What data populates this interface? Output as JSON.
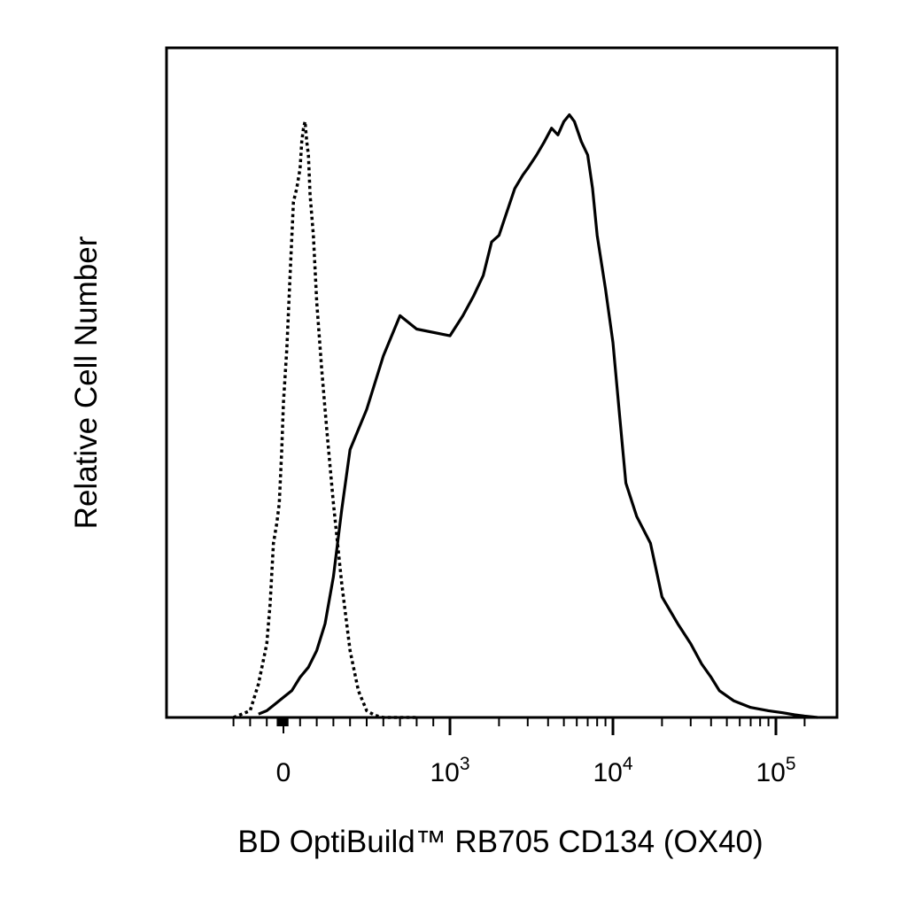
{
  "chart_data": {
    "type": "line",
    "title": "",
    "xlabel": "BD OptiBuild™ RB705 CD134 (OX40)",
    "ylabel": "Relative Cell Number",
    "x_scale": "biexponential",
    "xlim": [
      -300,
      180000
    ],
    "ylim": [
      0,
      100
    ],
    "grid": false,
    "legend": "none",
    "x_tick_labels": [
      {
        "value": 0,
        "base": "0",
        "exp": ""
      },
      {
        "value": 1000,
        "base": "10",
        "exp": "3"
      },
      {
        "value": 10000,
        "base": "10",
        "exp": "4"
      },
      {
        "value": 100000,
        "base": "10",
        "exp": "5"
      }
    ],
    "series": [
      {
        "style": "dotted",
        "color": "#000000",
        "x": [
          -300,
          -200,
          -150,
          -100,
          -80,
          -60,
          -40,
          -25,
          -10,
          0,
          20,
          40,
          60,
          80,
          100,
          110,
          120,
          130,
          140,
          150,
          160,
          180,
          200,
          230,
          260,
          300,
          350,
          400,
          450,
          500,
          550,
          600,
          650,
          700,
          750,
          800
        ],
        "y": [
          0,
          1,
          5,
          11,
          17,
          26,
          29,
          32,
          40,
          47,
          55,
          66,
          77,
          79,
          82,
          86,
          88,
          89,
          86,
          84,
          78,
          72,
          62,
          52,
          43,
          32,
          20,
          10,
          4,
          1,
          0.3,
          0,
          0,
          0,
          0,
          0
        ]
      },
      {
        "style": "solid",
        "color": "#000000",
        "x": [
          -150,
          -100,
          -50,
          0,
          50,
          100,
          150,
          200,
          250,
          300,
          350,
          400,
          500,
          600,
          700,
          800,
          1000,
          1200,
          1400,
          1600,
          1800,
          2000,
          2200,
          2500,
          2800,
          3000,
          3400,
          3800,
          4200,
          4600,
          5000,
          5400,
          5800,
          6400,
          7000,
          7500,
          8000,
          9000,
          10000,
          11000,
          12000,
          14000,
          17000,
          20000,
          25000,
          30000,
          35000,
          40000,
          45000,
          55000,
          70000,
          90000,
          110000,
          130000,
          150000,
          180000
        ],
        "y": [
          0.5,
          1,
          2,
          3,
          4,
          6,
          7.5,
          10,
          14,
          21,
          31,
          40,
          46,
          54,
          60,
          58,
          57,
          60,
          63,
          66,
          71,
          72,
          75,
          79,
          81,
          82,
          84,
          86,
          88,
          87,
          89,
          90,
          89,
          86,
          84,
          79,
          72,
          64,
          56,
          45,
          35,
          30,
          26,
          18,
          14,
          11,
          8,
          6,
          4,
          2.5,
          1.5,
          1,
          0.7,
          0.4,
          0.2,
          0
        ]
      }
    ]
  }
}
